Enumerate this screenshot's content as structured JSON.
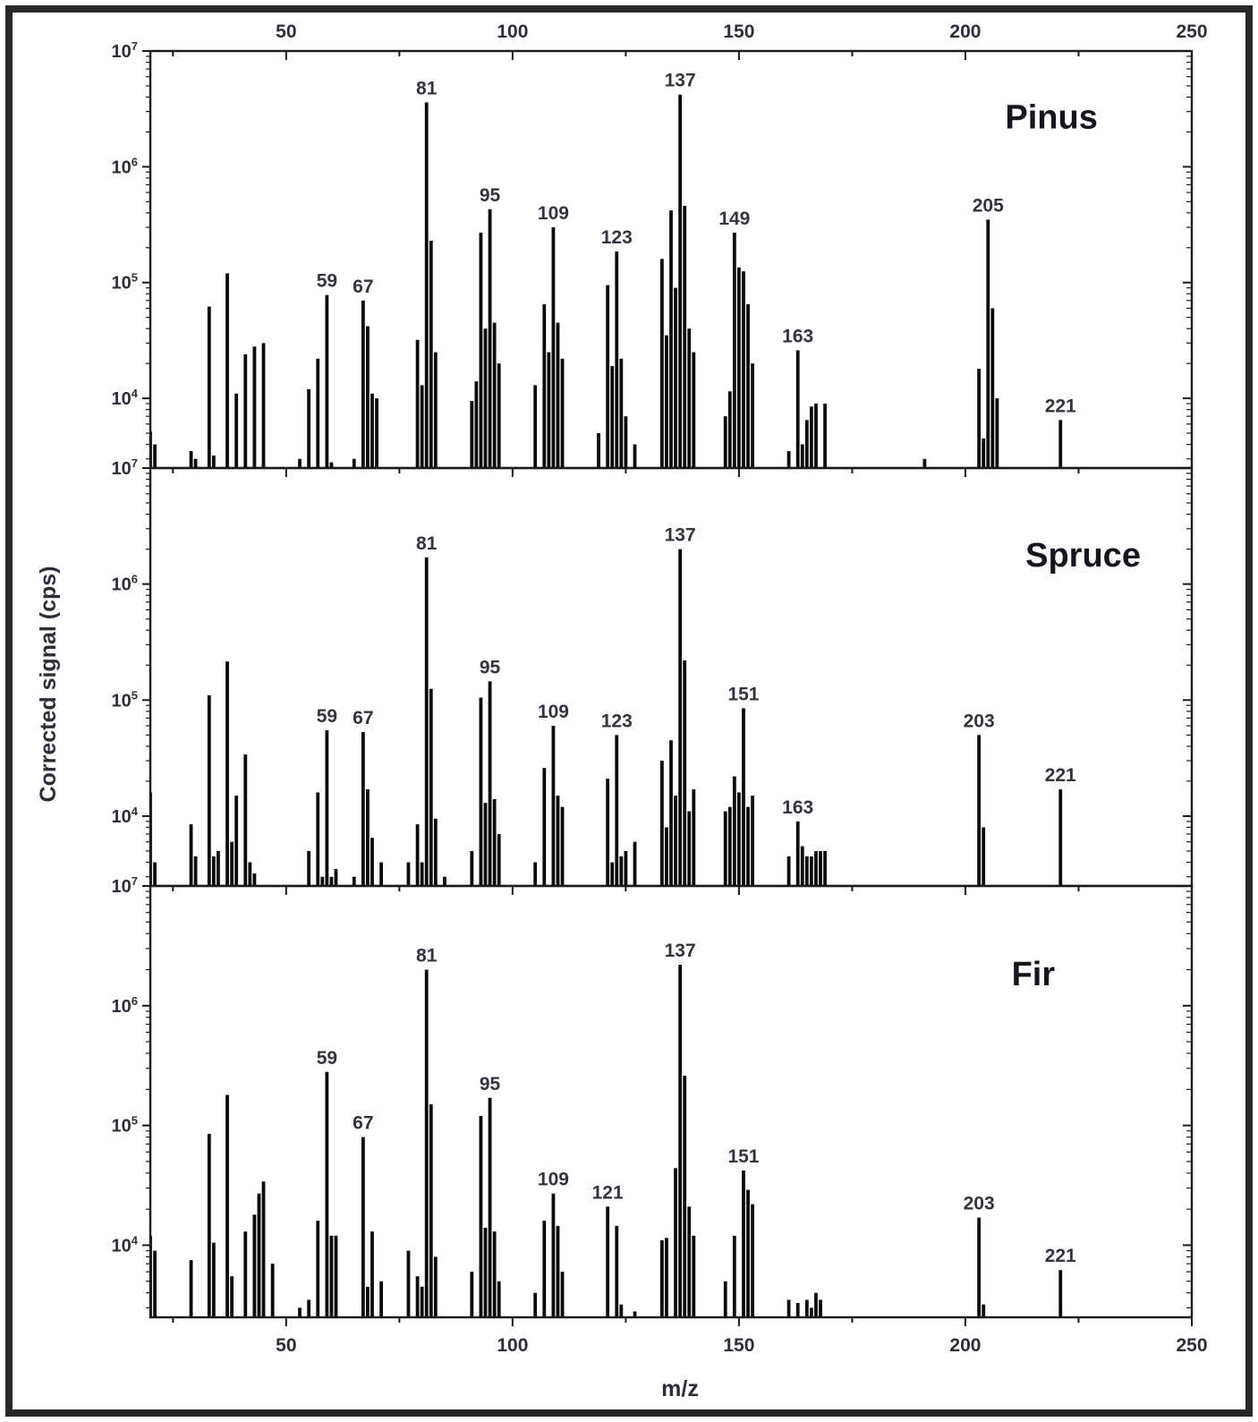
{
  "figure": {
    "xlabel": "m/z",
    "ylabel": "Corrected signal (cps)",
    "x_major_ticks": [
      50,
      100,
      150,
      200,
      250
    ],
    "x_minor_ticks": [
      25,
      75,
      125,
      175,
      225
    ],
    "y_tick_exponents": [
      4,
      5,
      6,
      7
    ],
    "x_range": [
      20,
      250
    ],
    "y_range": [
      2500,
      10000000
    ],
    "bar_color": "#0a0a0a",
    "axis_color": "#1a1a1a",
    "tick_text_color": "#2e2e38",
    "peak_label_color": "#34343e",
    "title_color": "#15151d"
  },
  "chart_data": [
    {
      "type": "bar",
      "title": "Pinus",
      "xlabel": "m/z",
      "ylabel": "Corrected signal (cps)",
      "y_scale": "log",
      "xlim": [
        20,
        250
      ],
      "ylim": [
        2500,
        10000000
      ],
      "labeled_peaks": [
        59,
        67,
        81,
        95,
        109,
        123,
        137,
        149,
        163,
        205,
        221
      ],
      "peaks": [
        [
          20,
          5200
        ],
        [
          21,
          4000
        ],
        [
          29,
          3500
        ],
        [
          30,
          3000
        ],
        [
          33,
          62000
        ],
        [
          34,
          3200
        ],
        [
          37,
          120000
        ],
        [
          39,
          11000
        ],
        [
          41,
          24000
        ],
        [
          43,
          28000
        ],
        [
          45,
          30000
        ],
        [
          53,
          3000
        ],
        [
          55,
          12000
        ],
        [
          57,
          22000
        ],
        [
          59,
          78000
        ],
        [
          60,
          2800
        ],
        [
          65,
          3000
        ],
        [
          67,
          70000
        ],
        [
          68,
          42000
        ],
        [
          69,
          11000
        ],
        [
          70,
          10000
        ],
        [
          79,
          32000
        ],
        [
          80,
          13000
        ],
        [
          81,
          3600000
        ],
        [
          82,
          230000
        ],
        [
          83,
          25000
        ],
        [
          91,
          9500
        ],
        [
          92,
          14000
        ],
        [
          93,
          270000
        ],
        [
          94,
          40000
        ],
        [
          95,
          430000
        ],
        [
          96,
          45000
        ],
        [
          97,
          20000
        ],
        [
          105,
          13000
        ],
        [
          107,
          65000
        ],
        [
          108,
          25000
        ],
        [
          109,
          300000
        ],
        [
          110,
          45000
        ],
        [
          111,
          22000
        ],
        [
          119,
          5000
        ],
        [
          121,
          95000
        ],
        [
          122,
          19000
        ],
        [
          123,
          185000
        ],
        [
          124,
          22000
        ],
        [
          125,
          7000
        ],
        [
          127,
          4000
        ],
        [
          133,
          160000
        ],
        [
          134,
          35000
        ],
        [
          135,
          420000
        ],
        [
          136,
          90000
        ],
        [
          137,
          4200000
        ],
        [
          138,
          460000
        ],
        [
          139,
          40000
        ],
        [
          140,
          25000
        ],
        [
          147,
          7000
        ],
        [
          148,
          11500
        ],
        [
          149,
          270000
        ],
        [
          150,
          135000
        ],
        [
          151,
          125000
        ],
        [
          152,
          65000
        ],
        [
          153,
          20000
        ],
        [
          161,
          3500
        ],
        [
          163,
          26000
        ],
        [
          164,
          4000
        ],
        [
          165,
          6500
        ],
        [
          166,
          8500
        ],
        [
          167,
          9000
        ],
        [
          169,
          9000
        ],
        [
          191,
          3000
        ],
        [
          203,
          18000
        ],
        [
          204,
          4500
        ],
        [
          205,
          350000
        ],
        [
          206,
          60000
        ],
        [
          207,
          10000
        ],
        [
          221,
          6500
        ]
      ]
    },
    {
      "type": "bar",
      "title": "Spruce",
      "xlabel": "m/z",
      "ylabel": "Corrected signal (cps)",
      "y_scale": "log",
      "xlim": [
        20,
        250
      ],
      "ylim": [
        2500,
        10000000
      ],
      "labeled_peaks": [
        59,
        67,
        81,
        95,
        109,
        123,
        137,
        151,
        163,
        203,
        221
      ],
      "peaks": [
        [
          20,
          16000
        ],
        [
          21,
          4000
        ],
        [
          29,
          8500
        ],
        [
          30,
          4500
        ],
        [
          33,
          110000
        ],
        [
          34,
          4500
        ],
        [
          35,
          5000
        ],
        [
          37,
          215000
        ],
        [
          38,
          6000
        ],
        [
          39,
          15000
        ],
        [
          41,
          34000
        ],
        [
          42,
          4000
        ],
        [
          43,
          3200
        ],
        [
          55,
          5000
        ],
        [
          57,
          16000
        ],
        [
          58,
          3000
        ],
        [
          59,
          55000
        ],
        [
          60,
          3000
        ],
        [
          61,
          3500
        ],
        [
          65,
          3000
        ],
        [
          67,
          53000
        ],
        [
          68,
          17000
        ],
        [
          69,
          6500
        ],
        [
          71,
          4000
        ],
        [
          77,
          4000
        ],
        [
          79,
          8500
        ],
        [
          80,
          4000
        ],
        [
          81,
          1700000
        ],
        [
          82,
          125000
        ],
        [
          83,
          9500
        ],
        [
          85,
          3000
        ],
        [
          91,
          5000
        ],
        [
          93,
          105000
        ],
        [
          94,
          13000
        ],
        [
          95,
          145000
        ],
        [
          96,
          14000
        ],
        [
          97,
          7000
        ],
        [
          105,
          4000
        ],
        [
          107,
          26000
        ],
        [
          109,
          60000
        ],
        [
          110,
          15000
        ],
        [
          111,
          12000
        ],
        [
          121,
          21000
        ],
        [
          122,
          4000
        ],
        [
          123,
          50000
        ],
        [
          124,
          4500
        ],
        [
          125,
          5000
        ],
        [
          127,
          6000
        ],
        [
          133,
          30000
        ],
        [
          134,
          8000
        ],
        [
          135,
          45000
        ],
        [
          136,
          15000
        ],
        [
          137,
          2000000
        ],
        [
          138,
          220000
        ],
        [
          139,
          11000
        ],
        [
          140,
          17000
        ],
        [
          147,
          11000
        ],
        [
          148,
          12000
        ],
        [
          149,
          22000
        ],
        [
          150,
          16000
        ],
        [
          151,
          85000
        ],
        [
          152,
          12000
        ],
        [
          153,
          15000
        ],
        [
          161,
          4500
        ],
        [
          163,
          9000
        ],
        [
          164,
          5500
        ],
        [
          165,
          4500
        ],
        [
          166,
          4500
        ],
        [
          167,
          5000
        ],
        [
          168,
          5000
        ],
        [
          169,
          5000
        ],
        [
          203,
          50000
        ],
        [
          204,
          8000
        ],
        [
          221,
          17000
        ]
      ]
    },
    {
      "type": "bar",
      "title": "Fir",
      "xlabel": "m/z",
      "ylabel": "Corrected signal (cps)",
      "y_scale": "log",
      "xlim": [
        20,
        250
      ],
      "ylim": [
        2500,
        10000000
      ],
      "labeled_peaks": [
        59,
        67,
        81,
        95,
        109,
        121,
        137,
        151,
        203,
        221
      ],
      "peaks": [
        [
          20,
          12000
        ],
        [
          21,
          9000
        ],
        [
          29,
          7500
        ],
        [
          33,
          85000
        ],
        [
          34,
          10500
        ],
        [
          37,
          180000
        ],
        [
          38,
          5500
        ],
        [
          41,
          13000
        ],
        [
          43,
          18000
        ],
        [
          44,
          27000
        ],
        [
          45,
          34000
        ],
        [
          47,
          7000
        ],
        [
          53,
          3000
        ],
        [
          55,
          3500
        ],
        [
          57,
          16000
        ],
        [
          59,
          280000
        ],
        [
          60,
          12000
        ],
        [
          61,
          12000
        ],
        [
          67,
          80000
        ],
        [
          68,
          4500
        ],
        [
          69,
          13000
        ],
        [
          71,
          5000
        ],
        [
          77,
          9000
        ],
        [
          79,
          5500
        ],
        [
          80,
          4500
        ],
        [
          81,
          2000000
        ],
        [
          82,
          150000
        ],
        [
          83,
          8000
        ],
        [
          91,
          6000
        ],
        [
          93,
          120000
        ],
        [
          94,
          14000
        ],
        [
          95,
          170000
        ],
        [
          96,
          13000
        ],
        [
          97,
          5000
        ],
        [
          105,
          4000
        ],
        [
          107,
          16000
        ],
        [
          109,
          27000
        ],
        [
          110,
          14500
        ],
        [
          111,
          6000
        ],
        [
          121,
          21000
        ],
        [
          123,
          14500
        ],
        [
          124,
          3200
        ],
        [
          127,
          2800
        ],
        [
          133,
          11000
        ],
        [
          134,
          11500
        ],
        [
          136,
          44000
        ],
        [
          137,
          2200000
        ],
        [
          138,
          260000
        ],
        [
          139,
          21000
        ],
        [
          140,
          12000
        ],
        [
          147,
          5000
        ],
        [
          149,
          12000
        ],
        [
          151,
          42000
        ],
        [
          152,
          29000
        ],
        [
          153,
          22000
        ],
        [
          161,
          3500
        ],
        [
          163,
          3300
        ],
        [
          165,
          3500
        ],
        [
          166,
          3000
        ],
        [
          167,
          4000
        ],
        [
          168,
          3500
        ],
        [
          203,
          17000
        ],
        [
          204,
          3200
        ],
        [
          221,
          6200
        ]
      ]
    }
  ]
}
